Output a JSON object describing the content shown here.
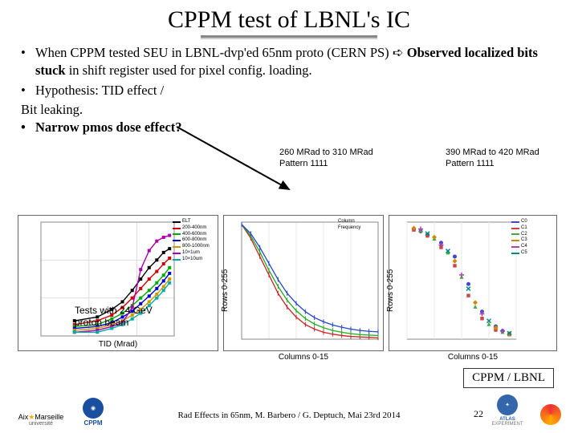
{
  "title": "CPPM test of LBNL's IC",
  "bullets": {
    "b1_pre": "When CPPM tested SEU in LBNL-dvp'ed 65nm proto (CERN PS) ",
    "b1_arrow": "➪",
    "b1_bold": " Observed localized bits stuck",
    "b1_post": " in shift register used for pixel config. loading.",
    "b2": "Hypothesis: TID effect /",
    "b2_cont": "Bit leaking.",
    "b3": "Narrow pmos dose effect?"
  },
  "annotations": {
    "left": {
      "line1": "260 MRad to 310 MRad",
      "line2": "Pattern 1111"
    },
    "right": {
      "line1": "390 MRad to 420 MRad",
      "line2": "Pattern 1111"
    }
  },
  "chart1": {
    "caption_l1": "Tests with 24 GeV",
    "caption_l2": "proton beam",
    "xaxis_label": "TID (Mrad)",
    "series": [
      {
        "label": "ELT",
        "color": "#000000",
        "y": [
          8,
          10,
          14,
          18,
          24,
          30,
          36,
          40,
          44,
          46
        ]
      },
      {
        "label": "200-400nm",
        "color": "#cc0000",
        "y": [
          6,
          8,
          11,
          15,
          20,
          25,
          30,
          34,
          38,
          41
        ]
      },
      {
        "label": "400-600nm",
        "color": "#00aa00",
        "y": [
          5,
          6,
          9,
          12,
          16,
          20,
          24,
          28,
          32,
          36
        ]
      },
      {
        "label": "600-800nm",
        "color": "#0000cc",
        "y": [
          4,
          5,
          7,
          10,
          13,
          17,
          21,
          25,
          29,
          33
        ]
      },
      {
        "label": "800-1000nm",
        "color": "#cc9900",
        "y": [
          3,
          4,
          6,
          8,
          11,
          14,
          18,
          22,
          26,
          30
        ]
      },
      {
        "label": "10×1um",
        "color": "#aa00aa",
        "y": [
          2,
          3,
          5,
          7,
          15,
          35,
          45,
          50,
          52,
          53
        ]
      },
      {
        "label": "10×10um",
        "color": "#00aaaa",
        "y": [
          2,
          2,
          4,
          6,
          9,
          12,
          16,
          20,
          24,
          28
        ]
      }
    ],
    "x": [
      5,
      15,
      30,
      50,
      80,
      120,
      180,
      260,
      360,
      480
    ],
    "xlim": [
      1,
      600
    ],
    "ylim": [
      0,
      60
    ],
    "background_color": "#ffffff",
    "grid_color": "#dddddd"
  },
  "chart2": {
    "y_label": "Rows 0-255",
    "x_label": "Columns 0-15",
    "series": [
      {
        "color": "#cc2222",
        "y": [
          250,
          220,
          180,
          140,
          100,
          70,
          48,
          32,
          22,
          15,
          11,
          8,
          6,
          5,
          4,
          3
        ]
      },
      {
        "color": "#22aa22",
        "y": [
          250,
          225,
          190,
          150,
          115,
          85,
          62,
          45,
          33,
          25,
          19,
          15,
          12,
          10,
          9,
          8
        ]
      },
      {
        "color": "#2244cc",
        "y": [
          250,
          230,
          200,
          165,
          130,
          100,
          78,
          60,
          47,
          38,
          31,
          26,
          22,
          19,
          17,
          16
        ]
      }
    ],
    "xlim": [
      0,
      15
    ],
    "ylim": [
      0,
      255
    ],
    "legend": [
      {
        "label": "Column",
        "color": "#888888"
      },
      {
        "label": "Frequency",
        "color": "#888888"
      }
    ],
    "background_color": "#ffffff",
    "grid_color": "#e8e8e8"
  },
  "chart3": {
    "y_label": "Rows 0-255",
    "x_label": "Columns 0-15",
    "series": [
      {
        "label": "C0",
        "color": "#4444cc",
        "pts": [
          [
            1,
            240
          ],
          [
            2,
            235
          ],
          [
            3,
            228
          ],
          [
            5,
            210
          ],
          [
            7,
            180
          ],
          [
            9,
            120
          ],
          [
            11,
            60
          ],
          [
            13,
            28
          ],
          [
            14,
            18
          ],
          [
            15,
            12
          ]
        ]
      },
      {
        "label": "C1",
        "color": "#cc4444",
        "pts": [
          [
            1,
            238
          ],
          [
            3,
            225
          ],
          [
            5,
            200
          ],
          [
            7,
            160
          ],
          [
            9,
            95
          ],
          [
            11,
            45
          ],
          [
            13,
            20
          ],
          [
            15,
            10
          ]
        ]
      },
      {
        "label": "C2",
        "color": "#44aa44",
        "pts": [
          [
            2,
            236
          ],
          [
            4,
            218
          ],
          [
            6,
            188
          ],
          [
            8,
            135
          ],
          [
            10,
            70
          ],
          [
            12,
            32
          ],
          [
            14,
            15
          ]
        ]
      },
      {
        "label": "C3",
        "color": "#cc8800",
        "pts": [
          [
            1,
            242
          ],
          [
            4,
            222
          ],
          [
            7,
            170
          ],
          [
            10,
            80
          ],
          [
            13,
            25
          ],
          [
            15,
            11
          ]
        ]
      },
      {
        "label": "C4",
        "color": "#aa44aa",
        "pts": [
          [
            2,
            240
          ],
          [
            5,
            205
          ],
          [
            8,
            140
          ],
          [
            11,
            55
          ],
          [
            14,
            18
          ]
        ]
      },
      {
        "label": "C5",
        "color": "#008888",
        "pts": [
          [
            3,
            230
          ],
          [
            6,
            192
          ],
          [
            9,
            110
          ],
          [
            12,
            40
          ],
          [
            15,
            13
          ]
        ]
      }
    ],
    "xlim": [
      0,
      16
    ],
    "ylim": [
      0,
      255
    ],
    "background_color": "#ffffff",
    "grid_color": "#e8e8e8"
  },
  "attribution": "CPPM / LBNL",
  "footer": {
    "text": "Rad Effects in 65nm, M. Barbero / G. Deptuch, Mai 23rd 2014",
    "page": "22"
  },
  "logos": {
    "l1": "Aix★Marseille\nuniversité",
    "l2": "CPPM",
    "r1": "ATLAS\nEXPERIMENT",
    "r2": "Pixel Cluster"
  },
  "colors": {
    "title_underline_top": "#888888",
    "title_underline_bot": "#cccccc",
    "arrow_color": "#000000",
    "logo_l1_star": "#ffaa00",
    "logo_l2_bg": "#1a4fa0",
    "logo_r1_bg": "#3366aa",
    "logo_r2_a": "#ee3333",
    "logo_r2_b": "#ffaa00"
  }
}
